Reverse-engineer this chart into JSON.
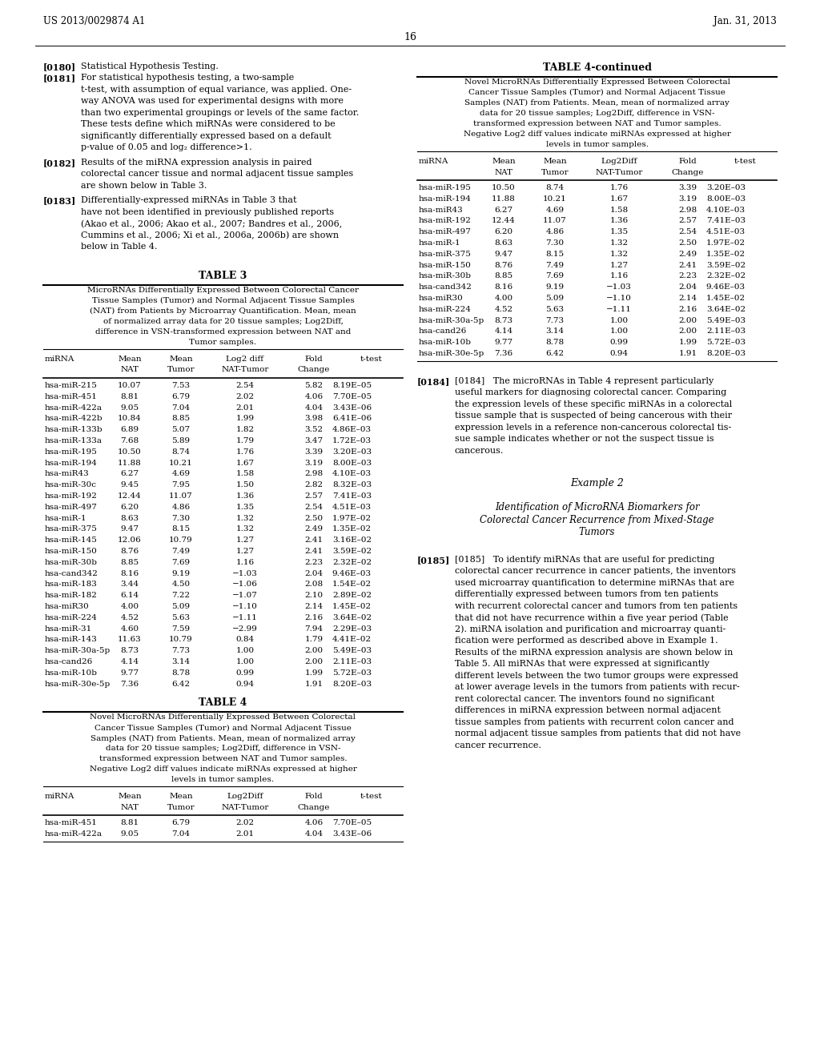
{
  "header_left": "US 2013/0029874 A1",
  "header_right": "Jan. 31, 2013",
  "page_number": "16",
  "table3_title": "TABLE 3",
  "table3_caption_lines": [
    "MicroRNAs Differentially Expressed Between Colorectal Cancer",
    "Tissue Samples (Tumor) and Normal Adjacent Tissue Samples",
    "(NAT) from Patients by Microarray Quantification. Mean, mean",
    "of normalized array data for 20 tissue samples; Log2Diff,",
    "difference in VSN-transformed expression between NAT and",
    "Tumor samples."
  ],
  "table3_col_headers": [
    "miRNA",
    "Mean\nNAT",
    "Mean\nTumor",
    "Log2 diff\nNAT-Tumor",
    "Fold\nChange",
    "t-test"
  ],
  "table3_data": [
    [
      "hsa-miR-215",
      "10.07",
      "7.53",
      "2.54",
      "5.82",
      "8.19E–05"
    ],
    [
      "hsa-miR-451",
      "8.81",
      "6.79",
      "2.02",
      "4.06",
      "7.70E–05"
    ],
    [
      "hsa-miR-422a",
      "9.05",
      "7.04",
      "2.01",
      "4.04",
      "3.43E–06"
    ],
    [
      "hsa-miR-422b",
      "10.84",
      "8.85",
      "1.99",
      "3.98",
      "6.41E–06"
    ],
    [
      "hsa-miR-133b",
      "6.89",
      "5.07",
      "1.82",
      "3.52",
      "4.86E–03"
    ],
    [
      "hsa-miR-133a",
      "7.68",
      "5.89",
      "1.79",
      "3.47",
      "1.72E–03"
    ],
    [
      "hsa-miR-195",
      "10.50",
      "8.74",
      "1.76",
      "3.39",
      "3.20E–03"
    ],
    [
      "hsa-miR-194",
      "11.88",
      "10.21",
      "1.67",
      "3.19",
      "8.00E–03"
    ],
    [
      "hsa-miR43",
      "6.27",
      "4.69",
      "1.58",
      "2.98",
      "4.10E–03"
    ],
    [
      "hsa-miR-30c",
      "9.45",
      "7.95",
      "1.50",
      "2.82",
      "8.32E–03"
    ],
    [
      "hsa-miR-192",
      "12.44",
      "11.07",
      "1.36",
      "2.57",
      "7.41E–03"
    ],
    [
      "hsa-miR-497",
      "6.20",
      "4.86",
      "1.35",
      "2.54",
      "4.51E–03"
    ],
    [
      "hsa-miR-1",
      "8.63",
      "7.30",
      "1.32",
      "2.50",
      "1.97E–02"
    ],
    [
      "hsa-miR-375",
      "9.47",
      "8.15",
      "1.32",
      "2.49",
      "1.35E–02"
    ],
    [
      "hsa-miR-145",
      "12.06",
      "10.79",
      "1.27",
      "2.41",
      "3.16E–02"
    ],
    [
      "hsa-miR-150",
      "8.76",
      "7.49",
      "1.27",
      "2.41",
      "3.59E–02"
    ],
    [
      "hsa-miR-30b",
      "8.85",
      "7.69",
      "1.16",
      "2.23",
      "2.32E–02"
    ],
    [
      "hsa-cand342",
      "8.16",
      "9.19",
      "−1.03",
      "2.04",
      "9.46E–03"
    ],
    [
      "hsa-miR-183",
      "3.44",
      "4.50",
      "−1.06",
      "2.08",
      "1.54E–02"
    ],
    [
      "hsa-miR-182",
      "6.14",
      "7.22",
      "−1.07",
      "2.10",
      "2.89E–02"
    ],
    [
      "hsa-miR30",
      "4.00",
      "5.09",
      "−1.10",
      "2.14",
      "1.45E–02"
    ],
    [
      "hsa-miR-224",
      "4.52",
      "5.63",
      "−1.11",
      "2.16",
      "3.64E–02"
    ],
    [
      "hsa-miR-31",
      "4.60",
      "7.59",
      "−2.99",
      "7.94",
      "2.29E–03"
    ],
    [
      "hsa-miR-143",
      "11.63",
      "10.79",
      "0.84",
      "1.79",
      "4.41E–02"
    ],
    [
      "hsa-miR-30a-5p",
      "8.73",
      "7.73",
      "1.00",
      "2.00",
      "5.49E–03"
    ],
    [
      "hsa-cand26",
      "4.14",
      "3.14",
      "1.00",
      "2.00",
      "2.11E–03"
    ],
    [
      "hsa-miR-10b",
      "9.77",
      "8.78",
      "0.99",
      "1.99",
      "5.72E–03"
    ],
    [
      "hsa-miR-30e-5p",
      "7.36",
      "6.42",
      "0.94",
      "1.91",
      "8.20E–03"
    ]
  ],
  "table4_title": "TABLE 4",
  "table4_caption_lines": [
    "Novel MicroRNAs Differentially Expressed Between Colorectal",
    "Cancer Tissue Samples (Tumor) and Normal Adjacent Tissue",
    "Samples (NAT) from Patients. Mean, mean of normalized array",
    "data for 20 tissue samples; Log2Diff, difference in VSN-",
    "transformed expression between NAT and Tumor samples.",
    "Negative Log2 diff values indicate miRNAs expressed at higher",
    "levels in tumor samples."
  ],
  "table4_col_headers": [
    "miRNA",
    "Mean\nNAT",
    "Mean\nTumor",
    "Log2Diff\nNAT-Tumor",
    "Fold\nChange",
    "t-test"
  ],
  "table4_data": [
    [
      "hsa-miR-451",
      "8.81",
      "6.79",
      "2.02",
      "4.06",
      "7.70E–05"
    ],
    [
      "hsa-miR-422a",
      "9.05",
      "7.04",
      "2.01",
      "4.04",
      "3.43E–06"
    ]
  ],
  "right_table4cont_title": "TABLE 4-continued",
  "right_table4cont_caption_lines": [
    "Novel MicroRNAs Differentially Expressed Between Colorectal",
    "Cancer Tissue Samples (Tumor) and Normal Adjacent Tissue",
    "Samples (NAT) from Patients. Mean, mean of normalized array",
    "data for 20 tissue samples; Log2Diff, difference in VSN-",
    "transformed expression between NAT and Tumor samples.",
    "Negative Log2 diff values indicate miRNAs expressed at higher",
    "levels in tumor samples."
  ],
  "right_table4cont_col_headers": [
    "miRNA",
    "Mean\nNAT",
    "Mean\nTumor",
    "Log2Diff\nNAT-Tumor",
    "Fold\nChange",
    "t-test"
  ],
  "right_table4cont_data": [
    [
      "hsa-miR-195",
      "10.50",
      "8.74",
      "1.76",
      "3.39",
      "3.20E–03"
    ],
    [
      "hsa-miR-194",
      "11.88",
      "10.21",
      "1.67",
      "3.19",
      "8.00E–03"
    ],
    [
      "hsa-miR43",
      "6.27",
      "4.69",
      "1.58",
      "2.98",
      "4.10E–03"
    ],
    [
      "hsa-miR-192",
      "12.44",
      "11.07",
      "1.36",
      "2.57",
      "7.41E–03"
    ],
    [
      "hsa-miR-497",
      "6.20",
      "4.86",
      "1.35",
      "2.54",
      "4.51E–03"
    ],
    [
      "hsa-miR-1",
      "8.63",
      "7.30",
      "1.32",
      "2.50",
      "1.97E–02"
    ],
    [
      "hsa-miR-375",
      "9.47",
      "8.15",
      "1.32",
      "2.49",
      "1.35E–02"
    ],
    [
      "hsa-miR-150",
      "8.76",
      "7.49",
      "1.27",
      "2.41",
      "3.59E–02"
    ],
    [
      "hsa-miR-30b",
      "8.85",
      "7.69",
      "1.16",
      "2.23",
      "2.32E–02"
    ],
    [
      "hsa-cand342",
      "8.16",
      "9.19",
      "−1.03",
      "2.04",
      "9.46E–03"
    ],
    [
      "hsa-miR30",
      "4.00",
      "5.09",
      "−1.10",
      "2.14",
      "1.45E–02"
    ],
    [
      "hsa-miR-224",
      "4.52",
      "5.63",
      "−1.11",
      "2.16",
      "3.64E–02"
    ],
    [
      "hsa-miR-30a-5p",
      "8.73",
      "7.73",
      "1.00",
      "2.00",
      "5.49E–03"
    ],
    [
      "hsa-cand26",
      "4.14",
      "3.14",
      "1.00",
      "2.00",
      "2.11E–03"
    ],
    [
      "hsa-miR-10b",
      "9.77",
      "8.78",
      "0.99",
      "1.99",
      "5.72E–03"
    ],
    [
      "hsa-miR-30e-5p",
      "7.36",
      "6.42",
      "0.94",
      "1.91",
      "8.20E–03"
    ]
  ],
  "para184_lines": [
    "[0184]   The microRNAs in Table 4 represent particularly",
    "useful markers for diagnosing colorectal cancer. Comparing",
    "the expression levels of these specific miRNAs in a colorectal",
    "tissue sample that is suspected of being cancerous with their",
    "expression levels in a reference non-cancerous colorectal tis-",
    "sue sample indicates whether or not the suspect tissue is",
    "cancerous."
  ],
  "example2_title": "Example 2",
  "example2_subtitle_lines": [
    "Identification of MicroRNA Biomarkers for",
    "Colorectal Cancer Recurrence from Mixed-Stage",
    "Tumors"
  ],
  "para185_lines": [
    "[0185]   To identify miRNAs that are useful for predicting",
    "colorectal cancer recurrence in cancer patients, the inventors",
    "used microarray quantification to determine miRNAs that are",
    "differentially expressed between tumors from ten patients",
    "with recurrent colorectal cancer and tumors from ten patients",
    "that did not have recurrence within a five year period (Table",
    "2). miRNA isolation and purification and microarray quanti-",
    "fication were performed as described above in Example 1.",
    "Results of the miRNA expression analysis are shown below in",
    "Table 5. All miRNAs that were expressed at significantly",
    "different levels between the two tumor groups were expressed",
    "at lower average levels in the tumors from patients with recur-",
    "rent colorectal cancer. The inventors found no significant",
    "differences in miRNA expression between normal adjacent",
    "tissue samples from patients with recurrent colon cancer and",
    "normal adjacent tissue samples from patients that did not have",
    "cancer recurrence."
  ],
  "para180_line": "Statistical Hypothesis Testing.",
  "para181_lines": [
    "For statistical hypothesis testing, a two-sample",
    "t-test, with assumption of equal variance, was applied. One-",
    "way ANOVA was used for experimental designs with more",
    "than two experimental groupings or levels of the same factor.",
    "These tests define which miRNAs were considered to be",
    "significantly differentially expressed based on a default",
    "p-value of 0.05 and log₂ difference>1."
  ],
  "para182_lines": [
    "Results of the miRNA expression analysis in paired",
    "colorectal cancer tissue and normal adjacent tissue samples",
    "are shown below in Table 3."
  ],
  "para183_lines": [
    "Differentially-expressed miRNAs in Table 3 that",
    "have not been identified in previously published reports",
    "(Akao et al., 2006; Akao et al., 2007; Bandres et al., 2006,",
    "Cummins et al., 2006; Xi et al., 2006a, 2006b) are shown",
    "below in Table 4."
  ]
}
